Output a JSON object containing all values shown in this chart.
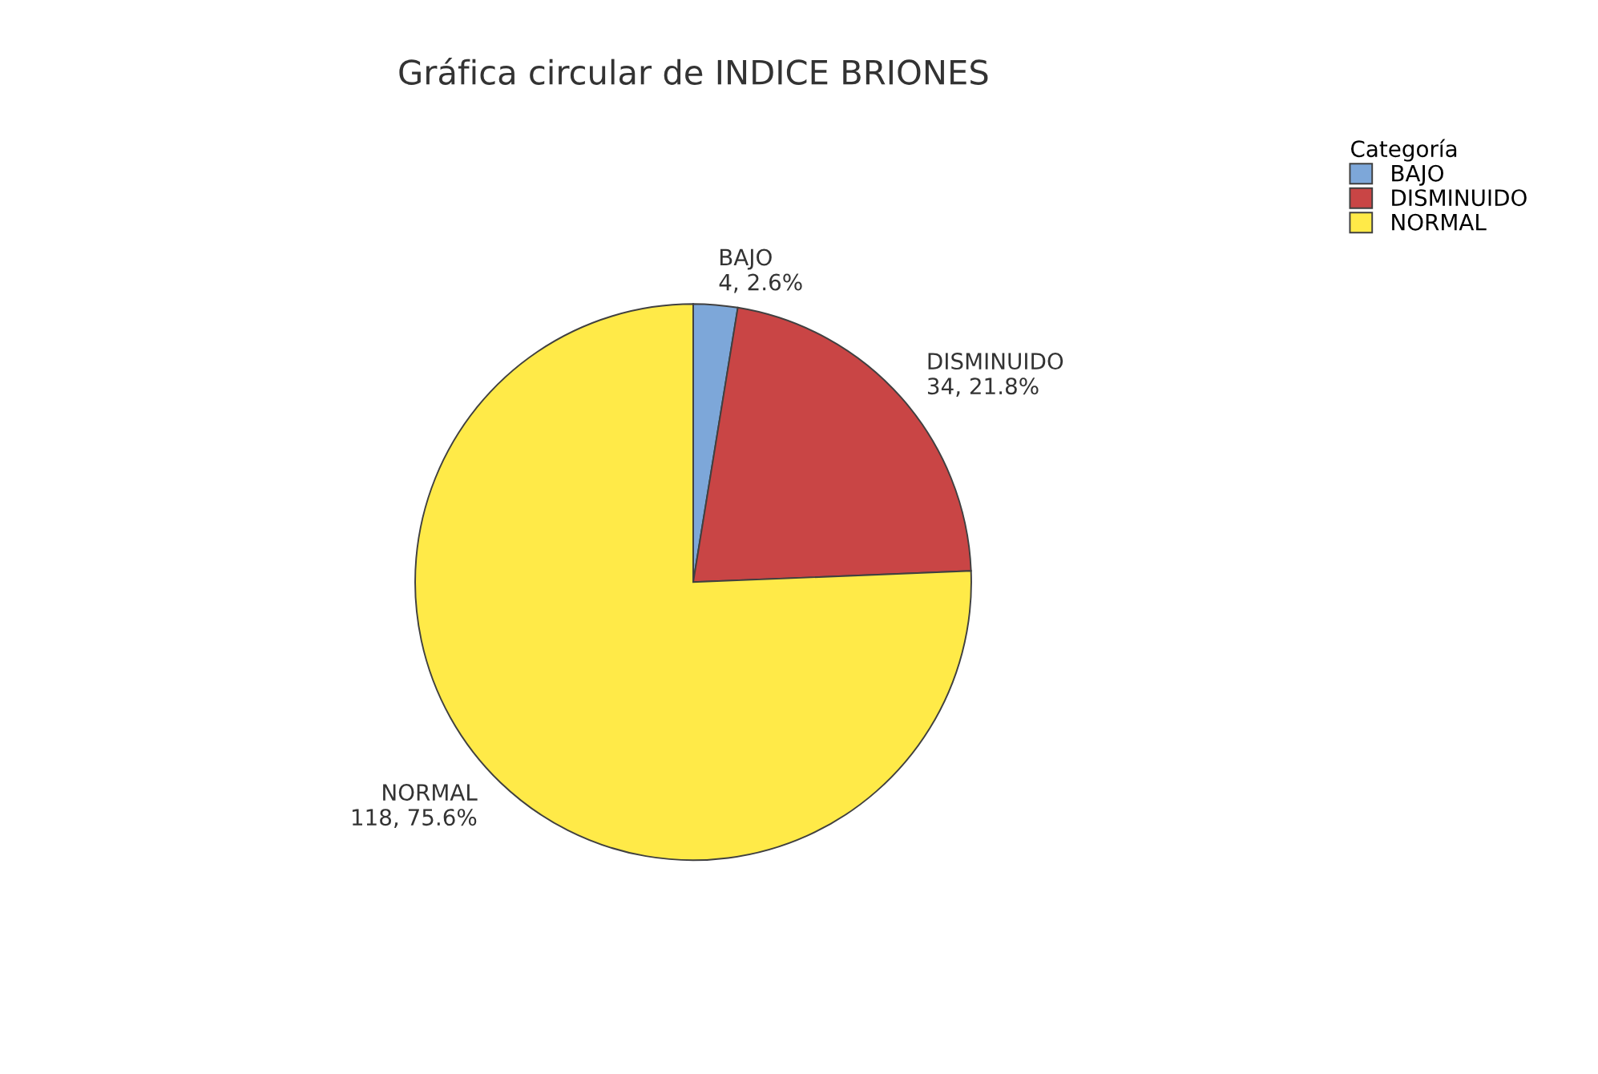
{
  "chart_data": {
    "type": "pie",
    "title": "Gráfica circular de INDICE BRIONES",
    "legend_title": "Categoría",
    "categories": [
      "BAJO",
      "DISMINUIDO",
      "NORMAL"
    ],
    "values": [
      4,
      34,
      118
    ],
    "value_labels": [
      "4, 2.6%",
      "34, 21.8%",
      "118, 75.6%"
    ],
    "colors": [
      "#7da7d9",
      "#c94545",
      "#ffea48"
    ],
    "legend": "top right"
  }
}
